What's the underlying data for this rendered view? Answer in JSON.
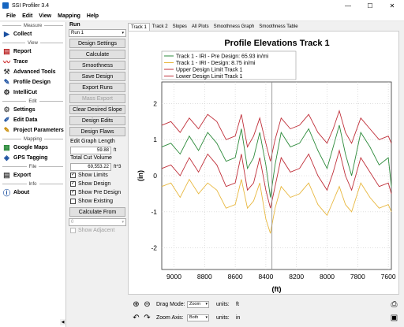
{
  "window": {
    "title": "SSI Profiler 3.4",
    "minimize": "—",
    "maximize": "☐",
    "close": "✕"
  },
  "menu": [
    "File",
    "Edit",
    "View",
    "Mapping",
    "Help"
  ],
  "sidebar": {
    "sections": {
      "measure": "Measure",
      "view": "View",
      "edit": "Edit",
      "mapping": "Mapping",
      "file": "File",
      "info": "Info"
    },
    "items": {
      "collect": "Collect",
      "report": "Report",
      "trace": "Trace",
      "advanced_tools": "Advanced Tools",
      "profile_design": "Profile Design",
      "intellicut": "IntelliCut",
      "settings": "Settings",
      "edit_data": "Edit Data",
      "project_parameters": "Project Parameters",
      "google_maps": "Google Maps",
      "gps_tagging": "GPS Tagging",
      "export": "Export",
      "about": "About"
    },
    "scroll_arrow": "◀"
  },
  "run_panel": {
    "header": "Run",
    "run_select": "Run 1",
    "buttons": {
      "design_settings": "Design Settings",
      "calculate": "Calculate",
      "smoothness": "Smoothness",
      "save_design": "Save Design",
      "export_runs": "Export Runs",
      "mass_export": "Mass Export",
      "clear_desired_slope": "Clear Desired Slope",
      "design_edits": "Design Edits",
      "design_flaws": "Design Flaws",
      "calculate_from": "Calculate From"
    },
    "edit_graph_length": {
      "label": "Edit Graph Length",
      "value": "59.88",
      "unit": "ft"
    },
    "total_cut_volume": {
      "label": "Total Cut Volume",
      "value": "69,553.22",
      "unit": "ft^3"
    },
    "checks": {
      "show_limits": {
        "label": "Show Limits",
        "checked": true
      },
      "show_design": {
        "label": "Show Design",
        "checked": true
      },
      "show_pre_design": {
        "label": "Show Pre Design",
        "checked": true
      },
      "show_existing": {
        "label": "Show Existing",
        "checked": false
      },
      "show_adjacent": {
        "label": "Show Adjacent",
        "checked": false
      }
    },
    "calc_from_select": "0",
    "check_mark": "✓",
    "select_arrow": "▾"
  },
  "tabs": [
    "Track 1",
    "Track 2",
    "Slopes",
    "All Plots",
    "Smoothness Graph",
    "Smoothness Table"
  ],
  "chart_data": {
    "type": "line",
    "title": "Profile Elevations Track 1",
    "xlabel": "(ft)",
    "ylabel": "(in)",
    "xlim": [
      9080,
      7580
    ],
    "ylim": [
      -2.6,
      2.6
    ],
    "x_ticks": [
      "9000",
      "8800",
      "8600",
      "8400",
      "8200",
      "8000",
      "7800",
      "7600"
    ],
    "x_tick_values": [
      9000,
      8800,
      8600,
      8400,
      8200,
      8000,
      7800,
      7600
    ],
    "y_ticks": [
      "2",
      "1",
      "0",
      "-1",
      "-2"
    ],
    "y_tick_values": [
      2,
      1,
      0,
      -1,
      -2
    ],
    "grid": true,
    "cursor_x": 8360,
    "series": [
      {
        "name": "Track 1 - IRI - Pre Design: 65.93 in/mi",
        "color": "#2e8b3c"
      },
      {
        "name": "Track 1 - IRI - Design: 8.75 in/mi",
        "color": "#e8b840"
      },
      {
        "name": "Upper Design Limit Track 1",
        "color": "#c0303a"
      },
      {
        "name": "Lower Design Limit Track 1",
        "color": "#c0303a"
      }
    ],
    "x": [
      9080,
      9020,
      8960,
      8900,
      8840,
      8780,
      8720,
      8660,
      8600,
      8560,
      8520,
      8480,
      8440,
      8400,
      8370,
      8340,
      8300,
      8240,
      8180,
      8120,
      8060,
      8000,
      7960,
      7920,
      7880,
      7840,
      7780,
      7720,
      7660,
      7600,
      7580
    ],
    "pre_design": [
      0.8,
      0.9,
      0.6,
      1.1,
      0.7,
      1.2,
      0.9,
      0.4,
      0.5,
      1.3,
      0.2,
      0.5,
      1.2,
      0.3,
      -0.6,
      0.3,
      1.2,
      0.8,
      0.9,
      1.3,
      0.7,
      0.2,
      0.8,
      1.4,
      0.6,
      0.0,
      1.2,
      0.8,
      0.3,
      0.5,
      -0.3
    ],
    "design": [
      -0.3,
      -0.2,
      -0.6,
      -0.1,
      -0.5,
      -0.2,
      -0.4,
      -0.9,
      -0.8,
      -0.1,
      -0.9,
      -0.7,
      -0.2,
      -1.2,
      -1.6,
      -0.9,
      -0.3,
      -0.6,
      -0.5,
      -0.2,
      -0.8,
      -1.1,
      -0.7,
      -0.3,
      -0.8,
      -1.0,
      -0.2,
      -0.6,
      -0.9,
      -0.8,
      -1.0
    ],
    "upper_limit": [
      1.4,
      1.5,
      1.2,
      1.6,
      1.3,
      1.7,
      1.5,
      1.0,
      1.1,
      1.7,
      0.8,
      1.1,
      1.6,
      0.9,
      0.4,
      1.0,
      1.6,
      1.3,
      1.4,
      1.7,
      1.2,
      0.9,
      1.3,
      1.8,
      1.2,
      0.9,
      1.6,
      1.3,
      1.0,
      1.1,
      0.9
    ],
    "lower_limit": [
      0.2,
      0.3,
      0.0,
      0.5,
      0.1,
      0.6,
      0.3,
      -0.3,
      -0.2,
      0.6,
      -0.4,
      -0.2,
      0.5,
      -0.4,
      -0.9,
      -0.3,
      0.5,
      0.1,
      0.2,
      0.6,
      0.0,
      -0.4,
      0.1,
      0.7,
      0.0,
      -0.4,
      0.5,
      0.1,
      -0.3,
      -0.2,
      -0.5
    ]
  },
  "bottom_bar": {
    "drag_mode_label": "Drag Mode:",
    "drag_mode_value": "Zoom",
    "zoom_axis_label": "Zoom Axis:",
    "zoom_axis_value": "Both",
    "units_label_1": "units:",
    "units_value_1": "ft",
    "units_label_2": "units:",
    "units_value_2": "in"
  },
  "icons": {
    "zoom_in": "⊕",
    "zoom_out": "⊖",
    "undo": "↶",
    "redo": "↷",
    "print": "⎙",
    "save": "▣"
  }
}
